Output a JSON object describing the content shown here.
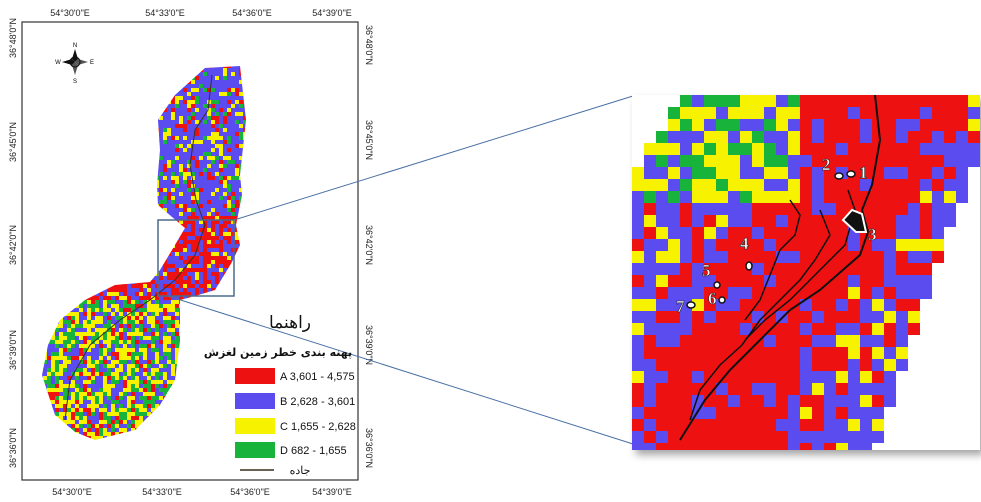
{
  "map": {
    "top_ticks": [
      "54°30'0\"E",
      "54°33'0\"E",
      "54°36'0\"E",
      "54°39'0\"E"
    ],
    "bottom_ticks": [
      "54°30'0\"E",
      "54°33'0\"E",
      "54°36'0\"E",
      "54°39'0\"E"
    ],
    "left_ticks": [
      "36°48'0\"N",
      "36°45'0\"N",
      "36°42'0\"N",
      "36°39'0\"N",
      "36°36'0\"N"
    ],
    "right_ticks": [
      "36°48'0\"N",
      "36°45'0\"N",
      "36°42'0\"N",
      "36°39'0\"N",
      "36°36'0\"N"
    ],
    "north_arrow": {
      "n": "N",
      "s": "S",
      "e": "E",
      "w": "W"
    }
  },
  "legend": {
    "title": "راهنما",
    "subtitle": "پهنه بندی خطر زمین لغزش",
    "items": [
      {
        "label": "A  3,601 - 4,575",
        "color": "#ee1111"
      },
      {
        "label": "B  2,628 - 3,601",
        "color": "#5b4cf0"
      },
      {
        "label": "C  1,655 - 2,628",
        "color": "#f6f200"
      },
      {
        "label": "D  682 - 1,655",
        "color": "#18b33a"
      }
    ],
    "road_label": "جاده",
    "road_color": "#3a2f1f"
  },
  "zoom": {
    "markers": [
      "1",
      "2",
      "3",
      "4",
      "5",
      "6",
      "7"
    ]
  },
  "colors": {
    "frame": "#333333",
    "connector": "#4a6fa5",
    "zoom_box": "#4a6b8c"
  }
}
